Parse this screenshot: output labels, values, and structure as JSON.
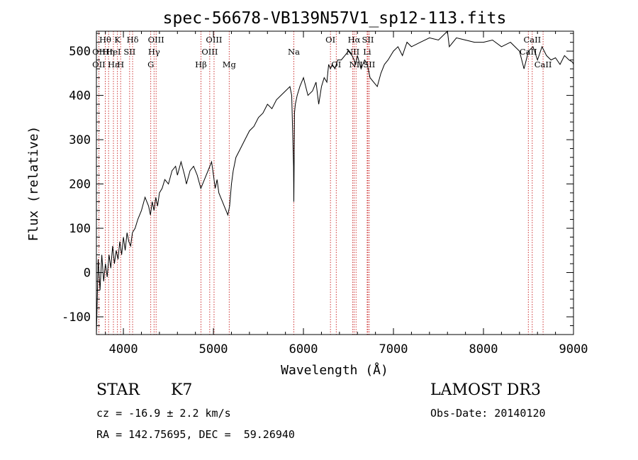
{
  "chart_data": {
    "type": "line",
    "title": "spec-56678-VB139N57V1_sp12-113.fits",
    "xlabel": "Wavelength (Å)",
    "ylabel": "Flux (relative)",
    "xlim": [
      3700,
      9000
    ],
    "ylim": [
      -140,
      545
    ],
    "xticks": [
      4000,
      5000,
      6000,
      7000,
      8000,
      9000
    ],
    "yticks": [
      -100,
      0,
      100,
      200,
      300,
      400,
      500
    ],
    "spectrum": {
      "name": "flux",
      "x": [
        3700,
        3720,
        3740,
        3760,
        3780,
        3800,
        3820,
        3840,
        3860,
        3880,
        3900,
        3920,
        3940,
        3960,
        3980,
        4000,
        4020,
        4040,
        4060,
        4080,
        4100,
        4130,
        4160,
        4200,
        4240,
        4280,
        4300,
        4320,
        4340,
        4360,
        4380,
        4400,
        4430,
        4460,
        4500,
        4540,
        4580,
        4600,
        4640,
        4680,
        4700,
        4740,
        4780,
        4820,
        4860,
        4900,
        4940,
        4980,
        5000,
        5020,
        5040,
        5060,
        5080,
        5100,
        5120,
        5140,
        5160,
        5180,
        5200,
        5220,
        5250,
        5300,
        5350,
        5400,
        5450,
        5500,
        5550,
        5600,
        5650,
        5700,
        5750,
        5800,
        5850,
        5870,
        5880,
        5890,
        5893,
        5896,
        5900,
        5910,
        5930,
        5960,
        6000,
        6050,
        6100,
        6140,
        6170,
        6200,
        6230,
        6260,
        6280,
        6300,
        6320,
        6350,
        6380,
        6420,
        6460,
        6500,
        6540,
        6563,
        6580,
        6600,
        6640,
        6680,
        6710,
        6740,
        6780,
        6820,
        6860,
        6900,
        6940,
        7000,
        7050,
        7100,
        7150,
        7200,
        7300,
        7400,
        7500,
        7600,
        7620,
        7700,
        7800,
        7900,
        8000,
        8100,
        8200,
        8300,
        8400,
        8450,
        8500,
        8550,
        8600,
        8650,
        8700,
        8750,
        8800,
        8850,
        8900,
        8950,
        8990,
        9000
      ],
      "y": [
        -140,
        30,
        -40,
        40,
        -20,
        20,
        -10,
        40,
        10,
        60,
        20,
        50,
        30,
        70,
        40,
        80,
        50,
        90,
        70,
        60,
        90,
        100,
        120,
        140,
        170,
        150,
        130,
        160,
        140,
        170,
        150,
        180,
        190,
        210,
        200,
        230,
        240,
        220,
        250,
        220,
        200,
        230,
        240,
        220,
        190,
        210,
        230,
        250,
        220,
        190,
        210,
        180,
        170,
        160,
        150,
        140,
        130,
        150,
        200,
        230,
        260,
        280,
        300,
        320,
        330,
        350,
        360,
        380,
        370,
        390,
        400,
        410,
        420,
        400,
        320,
        240,
        160,
        240,
        360,
        380,
        400,
        420,
        440,
        400,
        410,
        430,
        380,
        420,
        440,
        430,
        470,
        460,
        470,
        460,
        480,
        480,
        490,
        500,
        490,
        480,
        470,
        490,
        460,
        480,
        470,
        440,
        430,
        420,
        450,
        470,
        480,
        500,
        510,
        490,
        520,
        510,
        520,
        530,
        525,
        545,
        510,
        530,
        525,
        520,
        520,
        525,
        510,
        520,
        500,
        460,
        500,
        510,
        480,
        510,
        490,
        480,
        485,
        470,
        490,
        480,
        475,
        470
      ]
    },
    "spectral_lines": [
      {
        "label": "Hθ",
        "wavelength": 3798,
        "row": 1
      },
      {
        "label": "OII",
        "wavelength": 3727,
        "row": 2
      },
      {
        "label": "Hη",
        "wavelength": 3835,
        "row": 2
      },
      {
        "label": "OII",
        "wavelength": 3727,
        "row": 3
      },
      {
        "label": "Hε",
        "wavelength": 3889,
        "row": 3
      },
      {
        "label": "K",
        "wavelength": 3934,
        "row": 1
      },
      {
        "label": "HeI",
        "wavelength": 3888,
        "row": 2
      },
      {
        "label": "SII",
        "wavelength": 4069,
        "row": 2
      },
      {
        "label": "H",
        "wavelength": 3969,
        "row": 3
      },
      {
        "label": "Hδ",
        "wavelength": 4102,
        "row": 1
      },
      {
        "label": "OIII",
        "wavelength": 4363,
        "row": 1
      },
      {
        "label": "Hγ",
        "wavelength": 4340,
        "row": 2
      },
      {
        "label": "G",
        "wavelength": 4304,
        "row": 3
      },
      {
        "label": "OIII",
        "wavelength": 5007,
        "row": 1
      },
      {
        "label": "OIII",
        "wavelength": 4959,
        "row": 2
      },
      {
        "label": "Hβ",
        "wavelength": 4861,
        "row": 3
      },
      {
        "label": "Mg",
        "wavelength": 5175,
        "row": 3
      },
      {
        "label": "Na",
        "wavelength": 5893,
        "row": 2
      },
      {
        "label": "OI",
        "wavelength": 6300,
        "row": 1
      },
      {
        "label": "OI",
        "wavelength": 6364,
        "row": 3
      },
      {
        "label": "Hα",
        "wavelength": 6563,
        "row": 1
      },
      {
        "label": "SII",
        "wavelength": 6716,
        "row": 1
      },
      {
        "label": "NII",
        "wavelength": 6548,
        "row": 2
      },
      {
        "label": "Li",
        "wavelength": 6708,
        "row": 2
      },
      {
        "label": "NII",
        "wavelength": 6584,
        "row": 3
      },
      {
        "label": "SII",
        "wavelength": 6731,
        "row": 3
      },
      {
        "label": "CaII",
        "wavelength": 8542,
        "row": 1
      },
      {
        "label": "CaII",
        "wavelength": 8498,
        "row": 2
      },
      {
        "label": "CaII",
        "wavelength": 8662,
        "row": 3
      }
    ],
    "line_positions": [
      3727,
      3798,
      3835,
      3889,
      3934,
      3969,
      4069,
      4102,
      4304,
      4340,
      4363,
      4861,
      4959,
      5007,
      5175,
      5893,
      6300,
      6364,
      6548,
      6563,
      6584,
      6708,
      6716,
      6731,
      8498,
      8542,
      8662
    ],
    "colors": {
      "spectrum": "#000000",
      "lines": "#c00000",
      "frame": "#000000"
    }
  },
  "info": {
    "object_type": "STAR",
    "subclass": "K7",
    "survey": "LAMOST DR3",
    "cz": "cz = -16.9 ± 2.2 km/s",
    "obs_date": "Obs-Date: 20140120",
    "coords": "RA = 142.75695, DEC =  59.26940"
  }
}
